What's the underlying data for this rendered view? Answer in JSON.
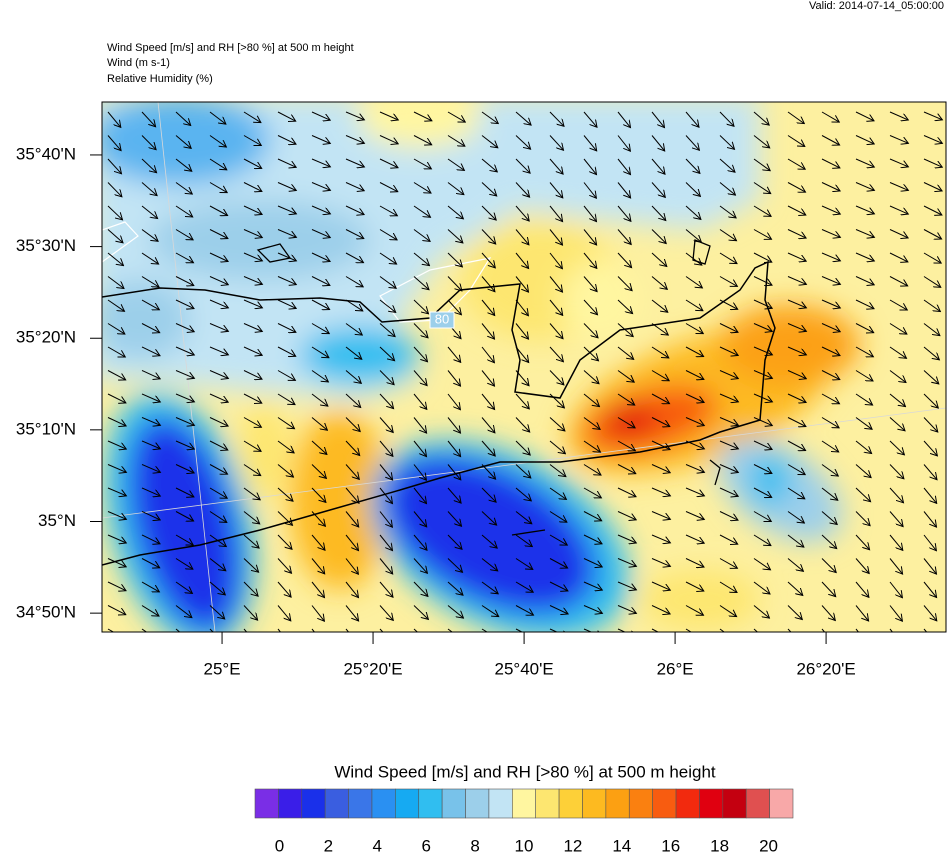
{
  "header": {
    "valid": "Valid: 2014-07-14_05:00:00",
    "lines": [
      "Wind Speed [m/s] and RH [>80 %] at 500 m height",
      "Wind   (m s-1)",
      "Relative Humidity    (%)"
    ]
  },
  "map": {
    "xlim": [
      24.735,
      26.598
    ],
    "ylim": [
      34.799,
      35.763
    ],
    "xticks": [
      {
        "value": 25,
        "label": "25°E"
      },
      {
        "value": 25.3333,
        "label": "25°20'E"
      },
      {
        "value": 25.6667,
        "label": "25°40'E"
      },
      {
        "value": 26,
        "label": "26°E"
      },
      {
        "value": 26.3333,
        "label": "26°20'E"
      }
    ],
    "yticks": [
      {
        "value": 34.8333,
        "label": "34°50'N"
      },
      {
        "value": 35,
        "label": "35°N"
      },
      {
        "value": 35.1667,
        "label": "35°10'N"
      },
      {
        "value": 35.3333,
        "label": "35°20'N"
      },
      {
        "value": 35.5,
        "label": "35°30'N"
      },
      {
        "value": 35.6667,
        "label": "35°40'N"
      }
    ],
    "contour_label": "80"
  },
  "colorbar": {
    "title": "Wind Speed [m/s] and RH [>80 %] at 500 m height",
    "lim": [
      -1,
      21
    ],
    "ticks": [
      0,
      2,
      4,
      6,
      8,
      10,
      12,
      14,
      16,
      18,
      20
    ],
    "colors": [
      "#7a2ee6",
      "#3a1ee8",
      "#1a30ea",
      "#3a5ee0",
      "#3a76e8",
      "#2a90f2",
      "#16aaf2",
      "#30bef0",
      "#78c2ea",
      "#9ccfea",
      "#c2e4f4",
      "#fff6a0",
      "#fde670",
      "#fdd038",
      "#fdba20",
      "#fca012",
      "#fa8010",
      "#f85c10",
      "#f22a0e",
      "#e00010",
      "#c40010",
      "#e05050",
      "#f8a8a8"
    ]
  }
}
